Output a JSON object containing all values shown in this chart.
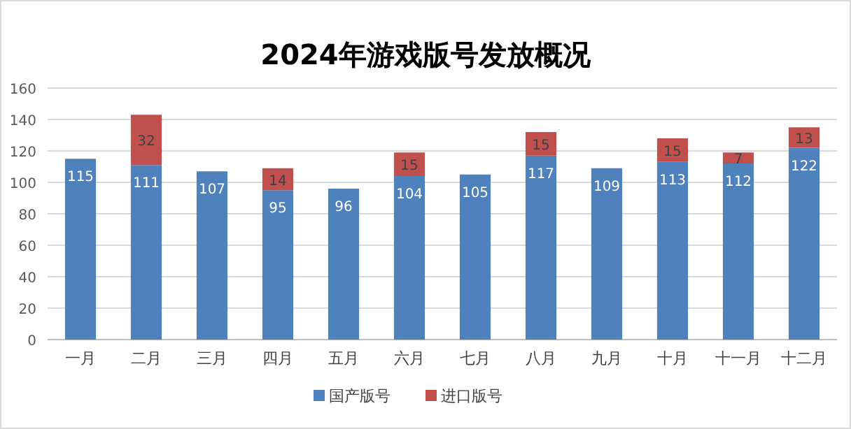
{
  "chart_data": {
    "type": "bar",
    "title": "2024年游戏版号发放概况",
    "stacked": true,
    "data_labels": true,
    "grid": "y",
    "legend": "bottom",
    "categories": [
      "一月",
      "二月",
      "三月",
      "四月",
      "五月",
      "六月",
      "七月",
      "八月",
      "九月",
      "十月",
      "十一月",
      "十二月"
    ],
    "ylim": [
      0,
      160
    ],
    "yticks": [
      0,
      20,
      40,
      60,
      80,
      100,
      120,
      140,
      160
    ],
    "series": [
      {
        "name": "国产版号",
        "color": "#4f81bd",
        "values": [
          115,
          111,
          107,
          95,
          96,
          104,
          105,
          117,
          109,
          113,
          112,
          122
        ]
      },
      {
        "name": "进口版号",
        "color": "#c0504d",
        "values": [
          null,
          32,
          null,
          14,
          null,
          15,
          null,
          15,
          null,
          15,
          7,
          13
        ]
      }
    ]
  }
}
